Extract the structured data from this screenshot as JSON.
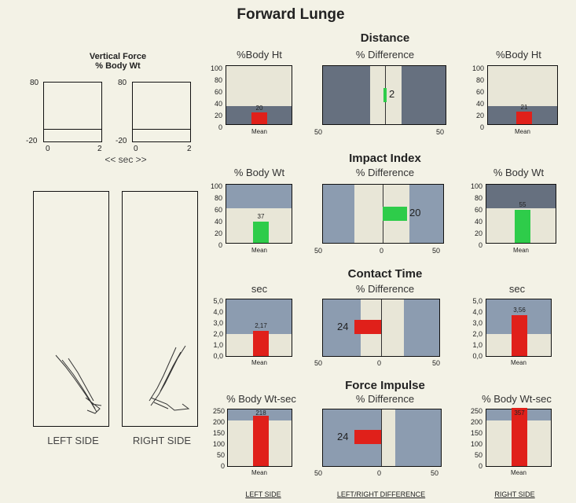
{
  "title": "Forward Lunge",
  "vertical_force": {
    "title_line1": "Vertical Force",
    "title_line2": "% Body Wt",
    "y_top": "80",
    "y_bottom": "-20",
    "x_left": "0",
    "x_right": "2",
    "axis_label": "<< sec >>"
  },
  "sides": {
    "left": "LEFT SIDE",
    "right": "RIGHT SIDE"
  },
  "footer": {
    "left": "LEFT SIDE",
    "middle": "LEFT/RIGHT DIFFERENCE",
    "right": "RIGHT SIDE"
  },
  "sections": [
    {
      "title": "Distance",
      "side_unit": "%Body Ht",
      "diff_label": "% Difference",
      "y_ticks": [
        "100",
        "80",
        "60",
        "40",
        "20",
        "0"
      ],
      "left_value": "20",
      "right_value": "21",
      "diff_value": "2",
      "diff_x_left": "50",
      "diff_x_right": "50",
      "mean_label": "Mean"
    },
    {
      "title": "Impact Index",
      "side_unit": "% Body Wt",
      "diff_label": "% Difference",
      "y_ticks": [
        "100",
        "80",
        "60",
        "40",
        "20",
        "0"
      ],
      "left_value": "37",
      "right_value": "55",
      "diff_value": "20",
      "diff_x_left": "50",
      "diff_x_mid": "0",
      "diff_x_right": "50",
      "mean_label": "Mean"
    },
    {
      "title": "Contact Time",
      "side_unit": "sec",
      "diff_label": "% Difference",
      "y_ticks": [
        "5,0",
        "4,0",
        "3,0",
        "2,0",
        "1,0",
        "0,0"
      ],
      "left_value": "2,17",
      "right_value": "3,56",
      "diff_value": "24",
      "diff_x_left": "50",
      "diff_x_mid": "0",
      "diff_x_right": "50",
      "mean_label": "Mean"
    },
    {
      "title": "Force Impulse",
      "side_unit": "% Body Wt-sec",
      "diff_label": "% Difference",
      "y_ticks": [
        "250",
        "200",
        "150",
        "100",
        "50",
        "0"
      ],
      "left_value": "218",
      "right_value": "357",
      "diff_value": "24",
      "diff_x_left": "50",
      "diff_x_mid": "0",
      "diff_x_right": "50",
      "mean_label": "Mean"
    }
  ],
  "colors": {
    "dark_panel": "#66707f",
    "light_panel": "#8c9cb0",
    "cream": "#e8e6d7",
    "green": "#2ecc4a",
    "red": "#e0201a"
  }
}
